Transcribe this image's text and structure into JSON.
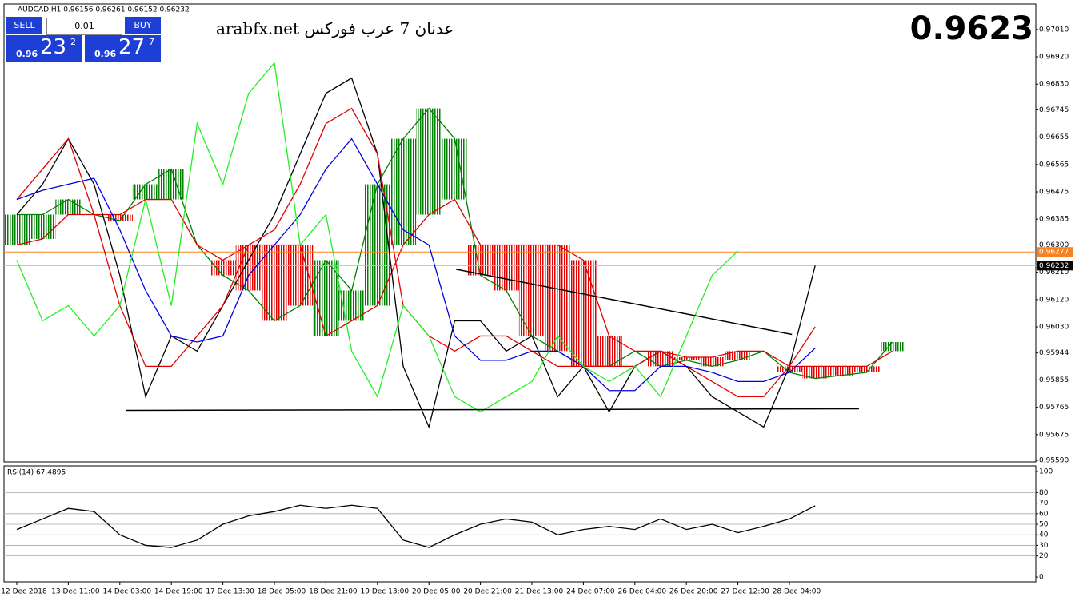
{
  "header": "AUDCAD,H1  0.96156 0.96261 0.96152 0.96232",
  "trade_panel": {
    "sell": "SELL",
    "lot": "0.01",
    "buy": "BUY",
    "sell_big": "0.96",
    "sell_pips": "23",
    "sell_frac": "2",
    "buy_big": "0.96",
    "buy_pips": "27",
    "buy_frac": "7"
  },
  "bid_display": "0.9623",
  "chart_data": [
    {
      "type": "line",
      "title": "arabfx.net عدنان 7 عرب فوركس",
      "categories": [
        "12 Dec 2018",
        null,
        "13 Dec 11:00",
        null,
        "14 Dec 03:00",
        null,
        "14 Dec 19:00",
        null,
        "17 Dec 13:00",
        null,
        "18 Dec 05:00",
        null,
        "18 Dec 21:00",
        null,
        "19 Dec 13:00",
        null,
        "20 Dec 05:00",
        null,
        "20 Dec 21:00",
        null,
        "21 Dec 13:00",
        null,
        "24 Dec 07:00",
        null,
        "26 Dec 04:00",
        null,
        "26 Dec 20:00",
        null,
        "27 Dec 12:00",
        null,
        "28 Dec 04:00",
        null,
        null,
        null,
        null,
        null,
        null,
        null,
        null,
        null
      ],
      "series": [
        {
          "color": "#000000",
          "values": [
            0.964,
            0.965,
            0.9665,
            0.965,
            0.962,
            0.958,
            0.96,
            0.9595,
            0.961,
            0.9625,
            0.964,
            0.966,
            0.968,
            0.9685,
            0.966,
            0.959,
            0.957,
            0.9605,
            0.9605,
            0.9595,
            0.96,
            0.958,
            0.959,
            0.9575,
            0.959,
            0.9595,
            0.959,
            0.958,
            0.9575,
            0.957,
            0.959,
            0.96232,
            null,
            null,
            null,
            null,
            null,
            null,
            null,
            null
          ]
        },
        {
          "color": "#e00000",
          "values": [
            0.9645,
            0.9655,
            0.9665,
            0.964,
            0.961,
            0.959,
            0.959,
            0.96,
            0.961,
            0.963,
            0.9635,
            0.965,
            0.967,
            0.9675,
            0.966,
            0.961,
            0.96,
            0.9595,
            0.96,
            0.96,
            0.9595,
            0.959,
            0.959,
            0.959,
            0.959,
            0.9595,
            0.959,
            0.9585,
            0.958,
            0.958,
            0.959,
            0.9603,
            null,
            null,
            null,
            null,
            null,
            null,
            null,
            null
          ]
        },
        {
          "color": "#0000e0",
          "values": [
            0.9645,
            0.9648,
            0.965,
            0.9652,
            0.9635,
            0.9615,
            0.96,
            0.9598,
            0.96,
            0.962,
            0.963,
            0.964,
            0.9655,
            0.9665,
            0.965,
            0.9635,
            0.963,
            0.96,
            0.9592,
            0.9592,
            0.9595,
            0.9595,
            0.959,
            0.9582,
            0.9582,
            0.959,
            0.959,
            0.9588,
            0.9585,
            0.9585,
            0.9588,
            0.9596,
            null,
            null,
            null,
            null,
            null,
            null,
            null,
            null
          ]
        },
        {
          "color": "#22ee22",
          "values": [
            0.9625,
            0.9605,
            0.961,
            0.96,
            0.961,
            0.9645,
            0.961,
            0.967,
            0.965,
            0.968,
            0.969,
            0.963,
            0.964,
            0.9595,
            0.958,
            0.961,
            0.96,
            0.958,
            0.9575,
            0.958,
            0.9585,
            0.96,
            0.959,
            0.9585,
            0.959,
            0.958,
            0.96,
            0.962,
            0.9628,
            null,
            null,
            null,
            null,
            null,
            null,
            null,
            null,
            null,
            null,
            null
          ]
        }
      ],
      "cloud": [
        {
          "color": "#008000",
          "values": [
            0.964,
            0.964,
            0.9645,
            0.964,
            0.9638,
            0.965,
            0.9655,
            0.963,
            0.962,
            0.9615,
            0.9605,
            0.961,
            0.9625,
            0.9615,
            0.965,
            0.9665,
            0.9675,
            0.9665,
            0.962,
            0.9615,
            0.96,
            0.9595,
            0.959,
            0.959,
            0.9595,
            0.959,
            0.9592,
            0.959,
            0.9592,
            0.9595,
            0.9588,
            0.9586,
            0.9587,
            0.9588,
            0.9598,
            null,
            null,
            null,
            null,
            null
          ]
        },
        {
          "color": "#e00000",
          "values": [
            0.963,
            0.9632,
            0.964,
            0.964,
            0.964,
            0.9645,
            0.9645,
            0.963,
            0.9625,
            0.963,
            0.963,
            0.963,
            0.96,
            0.9605,
            0.961,
            0.963,
            0.964,
            0.9645,
            0.963,
            0.963,
            0.963,
            0.963,
            0.9625,
            0.96,
            0.9595,
            0.9595,
            0.9593,
            0.9593,
            0.9595,
            0.9595,
            0.959,
            0.959,
            0.959,
            0.959,
            0.9595,
            null,
            null,
            null,
            null,
            null
          ]
        }
      ],
      "trendlines": [
        {
          "x": [
            4.25,
            32.7
          ],
          "values": [
            0.95755,
            0.9576
          ],
          "color": "#000000"
        },
        {
          "x": [
            17.05,
            30.1
          ],
          "values": [
            0.9622,
            0.96005
          ],
          "color": "#000000"
        }
      ],
      "price_lines": [
        {
          "value": 0.96277,
          "color": "#f58220",
          "box": "#f58220"
        },
        {
          "value": 0.96232,
          "color": "#c0c0c0",
          "box": "#000000"
        }
      ],
      "ylim": [
        0.95585,
        0.97094
      ],
      "yticks": [
        {
          "value": 0.9701,
          "label": "0.97010"
        },
        {
          "value": 0.9692,
          "label": "0.96920"
        },
        {
          "value": 0.9683,
          "label": "0.96830"
        },
        0.96745,
        0.96655,
        0.96565,
        0.96475,
        0.96385,
        {
          "value": 0.963,
          "label": "0.96300"
        },
        {
          "value": 0.9621,
          "label": "0.96210"
        },
        {
          "value": 0.9612,
          "label": "0.96120"
        },
        {
          "value": 0.9603,
          "label": "0.96030"
        },
        0.95944,
        0.95855,
        0.95765,
        0.95675,
        {
          "value": 0.9559,
          "label": "0.95590"
        }
      ]
    },
    {
      "type": "line",
      "title": "RSI(14) 67.4895",
      "series": [
        {
          "color": "#000000",
          "values": [
            45,
            55,
            65,
            62,
            40,
            30,
            28,
            35,
            50,
            58,
            62,
            68,
            65,
            68,
            65,
            35,
            28,
            40,
            50,
            55,
            52,
            40,
            45,
            48,
            45,
            55,
            45,
            50,
            42,
            48,
            55,
            67.5,
            null,
            null,
            null,
            null,
            null,
            null,
            null,
            null
          ]
        }
      ],
      "level_lines": [
        80,
        70,
        60,
        50,
        40,
        30,
        20
      ],
      "ylim": [
        -4.5,
        105.3
      ],
      "yticks": [
        100,
        80,
        70,
        60,
        50,
        40,
        30,
        20,
        0
      ]
    }
  ]
}
